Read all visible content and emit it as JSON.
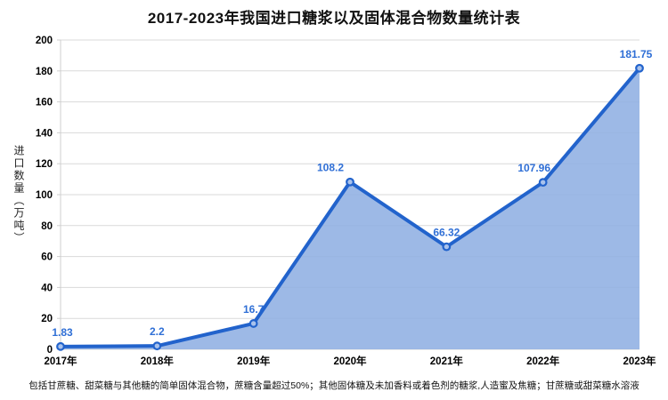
{
  "title": "2017-2023年我国进口糖浆以及固体混合物数量统计表",
  "footnote": "包括甘蔗糖、甜菜糖与其他糖的简单固体混合物，蔗糖含量超过50%；其他固体糖及未加香料或着色剂的糖浆,人造蜜及焦糖；甘蔗糖或甜菜糖水溶液",
  "chart_data": {
    "type": "area",
    "title": "2017-2023年我国进口糖浆以及固体混合物数量统计表",
    "categories": [
      "2017年",
      "2018年",
      "2019年",
      "2020年",
      "2021年",
      "2022年",
      "2023年"
    ],
    "values": [
      1.83,
      2.2,
      16.7,
      108.2,
      66.32,
      107.96,
      181.75
    ],
    "point_labels": [
      "1.83",
      "2.2",
      "16.7",
      "108.2",
      "66.32",
      "107.96",
      "181.75"
    ],
    "xlabel": "",
    "ylabel": "进口数量（万吨）",
    "ylim": [
      0,
      200
    ],
    "yticks": [
      0,
      20,
      40,
      60,
      80,
      100,
      120,
      140,
      160,
      180,
      200
    ],
    "grid": true,
    "legend": false,
    "colors": {
      "line": "#2263cc",
      "area": "#8fafe2",
      "marker_fill": "#a9c2ec",
      "point_label": "#2f6fd6",
      "grid": "#d9d9d9",
      "axis": "#cfcfcf",
      "tick_text": "#000000"
    }
  }
}
